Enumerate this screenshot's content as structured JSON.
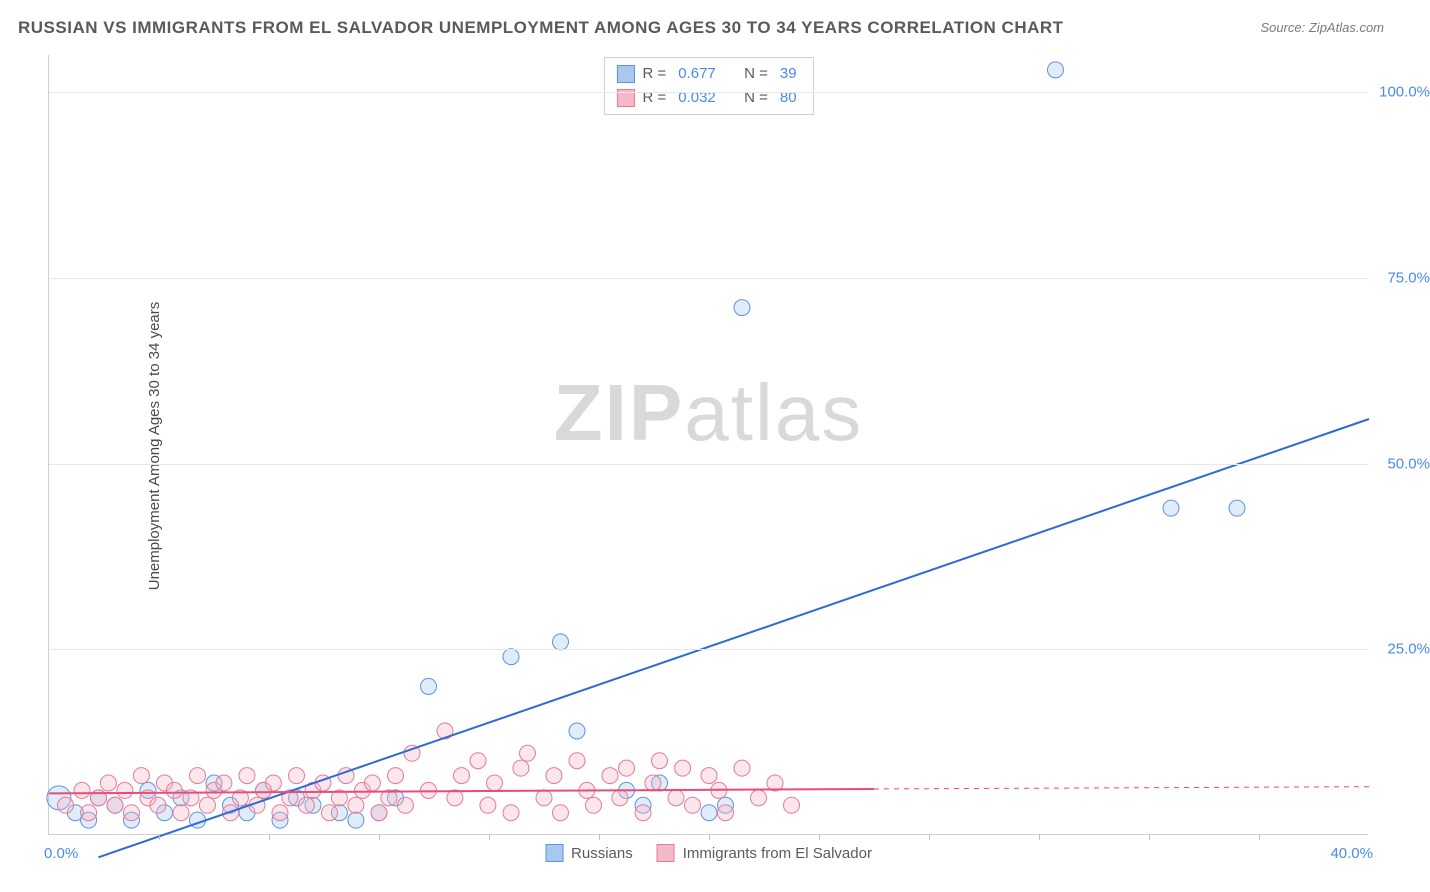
{
  "title": "RUSSIAN VS IMMIGRANTS FROM EL SALVADOR UNEMPLOYMENT AMONG AGES 30 TO 34 YEARS CORRELATION CHART",
  "source": "Source: ZipAtlas.com",
  "ylabel": "Unemployment Among Ages 30 to 34 years",
  "watermark_a": "ZIP",
  "watermark_b": "atlas",
  "chart": {
    "type": "scatter",
    "xlim": [
      0,
      40
    ],
    "ylim": [
      0,
      105
    ],
    "xlabel_start": "0.0%",
    "xlabel_end": "40.0%",
    "yticks": [
      25.0,
      50.0,
      75.0,
      100.0
    ],
    "ytick_labels": [
      "25.0%",
      "50.0%",
      "75.0%",
      "100.0%"
    ],
    "xticks_minor": [
      3.33,
      6.67,
      10,
      13.33,
      16.67,
      20,
      23.33,
      26.67,
      30,
      33.33,
      36.67
    ],
    "background_color": "#ffffff",
    "grid_color": "#e8e8e8",
    "axis_color": "#d0d0d0",
    "tick_label_color": "#4a8ae8",
    "title_color": "#5a5a5a",
    "title_fontsize": 17,
    "label_fontsize": 15,
    "tick_fontsize": 15,
    "marker_radius": 8,
    "marker_radius_large": 12,
    "marker_stroke_width": 1,
    "marker_fill_opacity": 0.35,
    "line_width": 2,
    "series": [
      {
        "name": "Russians",
        "color_fill": "#a9c8f0",
        "color_stroke": "#5a94de",
        "line_color": "#2e6bd6",
        "R_label": "R =",
        "R": "0.677",
        "N_label": "N =",
        "N": "39",
        "trend": {
          "x1": 1.5,
          "y1": -3,
          "x2": 40,
          "y2": 56
        },
        "points": [
          {
            "x": 0.3,
            "y": 5,
            "r": 12
          },
          {
            "x": 0.8,
            "y": 3
          },
          {
            "x": 1.2,
            "y": 2
          },
          {
            "x": 1.5,
            "y": 5
          },
          {
            "x": 2.0,
            "y": 4
          },
          {
            "x": 2.5,
            "y": 2
          },
          {
            "x": 3.0,
            "y": 6
          },
          {
            "x": 3.5,
            "y": 3
          },
          {
            "x": 4.0,
            "y": 5
          },
          {
            "x": 4.5,
            "y": 2
          },
          {
            "x": 5.0,
            "y": 7
          },
          {
            "x": 5.5,
            "y": 4
          },
          {
            "x": 6.0,
            "y": 3
          },
          {
            "x": 6.5,
            "y": 6
          },
          {
            "x": 7.0,
            "y": 2
          },
          {
            "x": 7.5,
            "y": 5
          },
          {
            "x": 8.0,
            "y": 4
          },
          {
            "x": 8.8,
            "y": 3
          },
          {
            "x": 9.3,
            "y": 2
          },
          {
            "x": 10.0,
            "y": 3
          },
          {
            "x": 10.5,
            "y": 5
          },
          {
            "x": 11.5,
            "y": 20
          },
          {
            "x": 14.0,
            "y": 24
          },
          {
            "x": 15.5,
            "y": 26
          },
          {
            "x": 16.0,
            "y": 14
          },
          {
            "x": 17.5,
            "y": 6
          },
          {
            "x": 18.0,
            "y": 4
          },
          {
            "x": 18.5,
            "y": 7
          },
          {
            "x": 20.0,
            "y": 3
          },
          {
            "x": 20.5,
            "y": 4
          },
          {
            "x": 21.0,
            "y": 71
          },
          {
            "x": 30.5,
            "y": 103
          },
          {
            "x": 34.0,
            "y": 44
          },
          {
            "x": 36.0,
            "y": 44
          }
        ]
      },
      {
        "name": "Immigrants from El Salvador",
        "color_fill": "#f4b8c6",
        "color_stroke": "#e77b97",
        "line_color": "#e94b7a",
        "R_label": "R =",
        "R": "0.032",
        "N_label": "N =",
        "N": "80",
        "trend": {
          "x1": 0,
          "y1": 5.6,
          "x2": 25,
          "y2": 6.2
        },
        "trend_dashed": {
          "x1": 25,
          "y1": 6.2,
          "x2": 40,
          "y2": 6.5
        },
        "points": [
          {
            "x": 0.5,
            "y": 4
          },
          {
            "x": 1.0,
            "y": 6
          },
          {
            "x": 1.2,
            "y": 3
          },
          {
            "x": 1.5,
            "y": 5
          },
          {
            "x": 1.8,
            "y": 7
          },
          {
            "x": 2.0,
            "y": 4
          },
          {
            "x": 2.3,
            "y": 6
          },
          {
            "x": 2.5,
            "y": 3
          },
          {
            "x": 2.8,
            "y": 8
          },
          {
            "x": 3.0,
            "y": 5
          },
          {
            "x": 3.3,
            "y": 4
          },
          {
            "x": 3.5,
            "y": 7
          },
          {
            "x": 3.8,
            "y": 6
          },
          {
            "x": 4.0,
            "y": 3
          },
          {
            "x": 4.3,
            "y": 5
          },
          {
            "x": 4.5,
            "y": 8
          },
          {
            "x": 4.8,
            "y": 4
          },
          {
            "x": 5.0,
            "y": 6
          },
          {
            "x": 5.3,
            "y": 7
          },
          {
            "x": 5.5,
            "y": 3
          },
          {
            "x": 5.8,
            "y": 5
          },
          {
            "x": 6.0,
            "y": 8
          },
          {
            "x": 6.3,
            "y": 4
          },
          {
            "x": 6.5,
            "y": 6
          },
          {
            "x": 6.8,
            "y": 7
          },
          {
            "x": 7.0,
            "y": 3
          },
          {
            "x": 7.3,
            "y": 5
          },
          {
            "x": 7.5,
            "y": 8
          },
          {
            "x": 7.8,
            "y": 4
          },
          {
            "x": 8.0,
            "y": 6
          },
          {
            "x": 8.3,
            "y": 7
          },
          {
            "x": 8.5,
            "y": 3
          },
          {
            "x": 8.8,
            "y": 5
          },
          {
            "x": 9.0,
            "y": 8
          },
          {
            "x": 9.3,
            "y": 4
          },
          {
            "x": 9.5,
            "y": 6
          },
          {
            "x": 9.8,
            "y": 7
          },
          {
            "x": 10.0,
            "y": 3
          },
          {
            "x": 10.3,
            "y": 5
          },
          {
            "x": 10.5,
            "y": 8
          },
          {
            "x": 10.8,
            "y": 4
          },
          {
            "x": 11.0,
            "y": 11
          },
          {
            "x": 11.5,
            "y": 6
          },
          {
            "x": 12.0,
            "y": 14
          },
          {
            "x": 12.3,
            "y": 5
          },
          {
            "x": 12.5,
            "y": 8
          },
          {
            "x": 13.0,
            "y": 10
          },
          {
            "x": 13.3,
            "y": 4
          },
          {
            "x": 13.5,
            "y": 7
          },
          {
            "x": 14.0,
            "y": 3
          },
          {
            "x": 14.3,
            "y": 9
          },
          {
            "x": 14.5,
            "y": 11
          },
          {
            "x": 15.0,
            "y": 5
          },
          {
            "x": 15.3,
            "y": 8
          },
          {
            "x": 15.5,
            "y": 3
          },
          {
            "x": 16.0,
            "y": 10
          },
          {
            "x": 16.3,
            "y": 6
          },
          {
            "x": 16.5,
            "y": 4
          },
          {
            "x": 17.0,
            "y": 8
          },
          {
            "x": 17.3,
            "y": 5
          },
          {
            "x": 17.5,
            "y": 9
          },
          {
            "x": 18.0,
            "y": 3
          },
          {
            "x": 18.3,
            "y": 7
          },
          {
            "x": 18.5,
            "y": 10
          },
          {
            "x": 19.0,
            "y": 5
          },
          {
            "x": 19.2,
            "y": 9
          },
          {
            "x": 19.5,
            "y": 4
          },
          {
            "x": 20.0,
            "y": 8
          },
          {
            "x": 20.3,
            "y": 6
          },
          {
            "x": 20.5,
            "y": 3
          },
          {
            "x": 21.0,
            "y": 9
          },
          {
            "x": 21.5,
            "y": 5
          },
          {
            "x": 22.0,
            "y": 7
          },
          {
            "x": 22.5,
            "y": 4
          }
        ]
      }
    ]
  }
}
